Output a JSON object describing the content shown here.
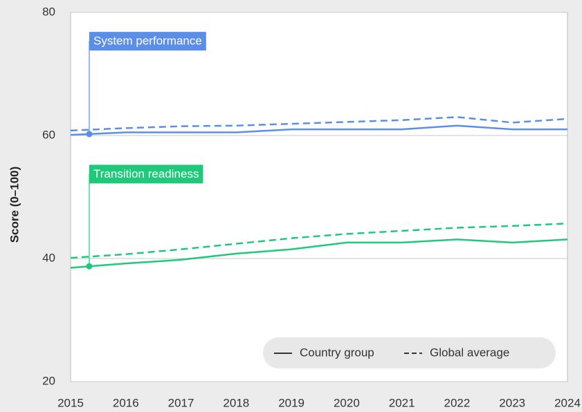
{
  "chart_data": {
    "type": "line",
    "y_label": "Score (0–100)",
    "x": [
      2015,
      2016,
      2017,
      2018,
      2019,
      2020,
      2021,
      2022,
      2023,
      2024
    ],
    "xlim": [
      2015,
      2024
    ],
    "xticks": [
      2015,
      2016,
      2017,
      2018,
      2019,
      2020,
      2021,
      2022,
      2023,
      2024
    ],
    "ylim": [
      20,
      80
    ],
    "yticks": [
      20,
      40,
      60,
      80
    ],
    "grid": true,
    "legend": [
      "Country group",
      "Global average"
    ],
    "groups": [
      {
        "label": "System performance",
        "color": "#5b8ee6",
        "country": [
          60.1,
          60.5,
          60.5,
          60.5,
          61,
          61,
          61,
          61.6,
          61,
          61
        ],
        "global": [
          60.8,
          61.2,
          61.5,
          61.6,
          61.9,
          62.2,
          62.5,
          63,
          62.1,
          62.7
        ]
      },
      {
        "label": "Transition readiness",
        "color": "#1ec97a",
        "country": [
          38.5,
          39.2,
          39.8,
          40.8,
          41.5,
          42.6,
          42.6,
          43.1,
          42.6,
          43.1
        ],
        "global": [
          40.1,
          40.7,
          41.5,
          42.4,
          43.3,
          44,
          44.5,
          45,
          45.3,
          45.7
        ]
      }
    ]
  }
}
